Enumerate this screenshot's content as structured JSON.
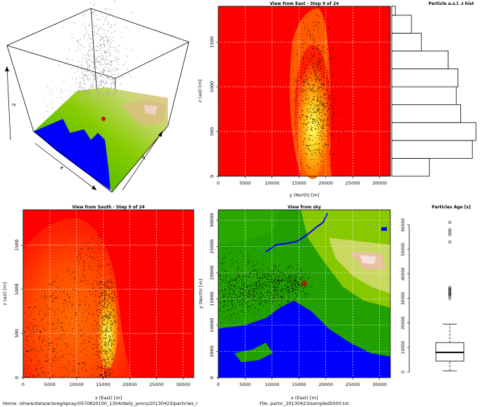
{
  "footer": {
    "left": "Home: /share/data/arisreg/spray/0570820100_1304/daily_procs/20130423/particles_r",
    "right": "File: partic_20130423/sampled5000.txt"
  },
  "colors": {
    "sea": "#0000ff",
    "low_land": "#22aa00",
    "mid_land": "#88cc00",
    "high_land": "#e8c090",
    "peak": "#f0f0f0",
    "plume_bg": "#ff0000",
    "plume_mid": "#ff8000",
    "plume_core": "#ffff40",
    "points": "#000000",
    "grid": "#ffffff"
  },
  "chart_data": [
    {
      "id": "3d-view",
      "type": "scatter",
      "title": "",
      "xlabel": "x",
      "ylabel": "y",
      "zlabel": "z",
      "description_markers": "3D scatter of particles above terrain surface"
    },
    {
      "id": "east-view",
      "type": "heatmap",
      "title": "View from East - Step 9 of 24",
      "xlabel": "y (North) [m]",
      "ylabel": "z (asl) [m]",
      "xlim": [
        0,
        32000
      ],
      "ylim": [
        0,
        1900
      ],
      "xticks": [
        "0",
        "5000",
        "10000",
        "15000",
        "20000",
        "25000",
        "30000"
      ],
      "yticks": [
        "0",
        "500",
        "1000",
        "1500"
      ],
      "xtick_values": [
        0,
        5000,
        10000,
        15000,
        20000,
        25000,
        30000
      ],
      "ytick_values": [
        0,
        500,
        1000,
        1500
      ],
      "plume_center_y": 18000,
      "plume_halfwidth": 4000,
      "plume_top_z": 1820
    },
    {
      "id": "z-hist",
      "type": "bar",
      "orientation": "horizontal",
      "title": "Particle a.s.l. z hist",
      "bin_edges": [
        0,
        200,
        400,
        600,
        800,
        1000,
        1200,
        1400,
        1600,
        1800,
        1900
      ],
      "values": [
        0.42,
        0.9,
        0.94,
        0.77,
        0.72,
        0.74,
        0.63,
        0.33,
        0.22,
        0.04
      ]
    },
    {
      "id": "south-view",
      "type": "heatmap",
      "title": "View from South - Step 9 of 24",
      "xlabel": "x (East) [m]",
      "ylabel": "z (asl) [m]",
      "xlim": [
        0,
        32000
      ],
      "ylim": [
        0,
        1900
      ],
      "xticks": [
        "0",
        "5000",
        "10000",
        "15000",
        "20000",
        "25000",
        "30000"
      ],
      "yticks": [
        "0",
        "500",
        "1000",
        "1500"
      ],
      "xtick_values": [
        0,
        5000,
        10000,
        15000,
        20000,
        25000,
        30000
      ],
      "ytick_values": [
        0,
        500,
        1000,
        1500
      ],
      "plume_core_x": 15500
    },
    {
      "id": "sky-view",
      "type": "heatmap",
      "title": "View from sky",
      "xlabel": "x (East) [m]",
      "ylabel": "y (North) [m]",
      "xlim": [
        0,
        32000
      ],
      "ylim": [
        0,
        32000
      ],
      "xticks": [
        "0",
        "5000",
        "10000",
        "15000",
        "20000",
        "25000",
        "30000"
      ],
      "yticks": [
        "0",
        "5000",
        "10000",
        "15000",
        "20000",
        "25000",
        "30000"
      ],
      "xtick_values": [
        0,
        5000,
        10000,
        15000,
        20000,
        25000,
        30000
      ],
      "ytick_values": [
        0,
        5000,
        10000,
        15000,
        20000,
        25000,
        30000
      ],
      "source_x": 16000,
      "source_y": 18000
    },
    {
      "id": "age-box",
      "type": "box",
      "title": "Particles Age [s]",
      "ylim": [
        0,
        61000
      ],
      "yticks": [
        "0",
        "10000",
        "20000",
        "30000",
        "40000",
        "50000",
        "60000"
      ],
      "ytick_values": [
        0,
        10000,
        20000,
        30000,
        40000,
        50000,
        60000
      ],
      "min": 500,
      "q1": 4500,
      "median": 8000,
      "q3": 12000,
      "max": 19500,
      "outliers": [
        30000,
        31000,
        31500,
        32000,
        32500,
        33000,
        33500,
        34000,
        34500,
        53000,
        56000,
        57000,
        58000,
        61000
      ]
    }
  ]
}
